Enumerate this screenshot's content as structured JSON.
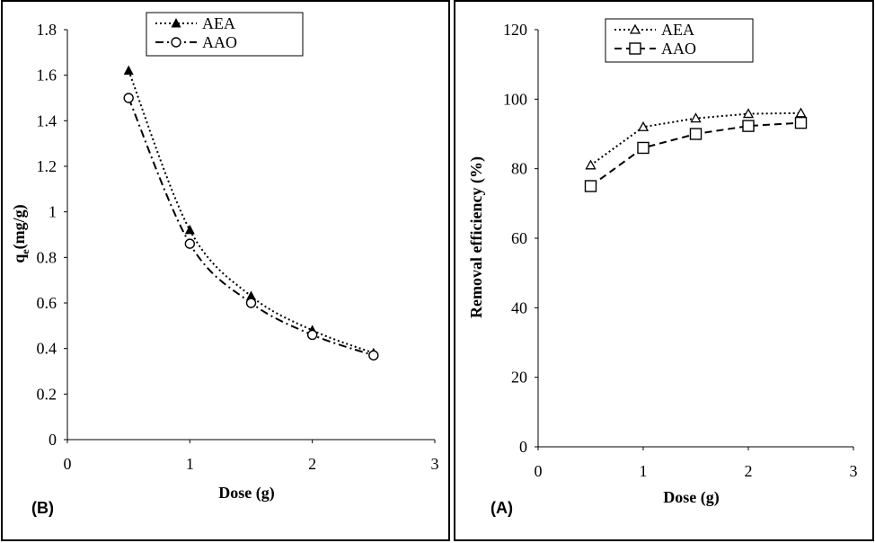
{
  "chart_data": [
    {
      "panel_label": "(B)",
      "type": "line",
      "xlabel": "Dose (g)",
      "ylabel": "qe(mg/g)",
      "ylabel_main": "q",
      "ylabel_sub": "e",
      "ylabel_rest": "(mg/g)",
      "xlim": [
        0,
        3
      ],
      "ylim": [
        0,
        1.8
      ],
      "xticks": [
        "0",
        "1",
        "2",
        "3"
      ],
      "yticks": [
        "0",
        "0.2",
        "0.4",
        "0.6",
        "0.8",
        "1",
        "1.2",
        "1.4",
        "1.6",
        "1.8"
      ],
      "legend_position": "top",
      "series": [
        {
          "name": "AEA",
          "marker": "filled-triangle",
          "line": "dotted",
          "x": [
            0.5,
            1.0,
            1.5,
            2.0,
            2.5
          ],
          "y": [
            1.62,
            0.92,
            0.63,
            0.48,
            0.38
          ]
        },
        {
          "name": "AAO",
          "marker": "open-circle",
          "line": "dash-dot",
          "x": [
            0.5,
            1.0,
            1.5,
            2.0,
            2.5
          ],
          "y": [
            1.5,
            0.86,
            0.6,
            0.46,
            0.37
          ]
        }
      ]
    },
    {
      "panel_label": "(A)",
      "type": "line",
      "xlabel": "Dose (g)",
      "ylabel": "Removal efficiency  (%)",
      "xlim": [
        0,
        3
      ],
      "ylim": [
        0,
        120
      ],
      "xticks": [
        "0",
        "1",
        "2",
        "3"
      ],
      "yticks": [
        "0",
        "20",
        "40",
        "60",
        "80",
        "100",
        "120"
      ],
      "legend_position": "top",
      "series": [
        {
          "name": "AEA",
          "marker": "open-triangle",
          "line": "dotted",
          "x": [
            0.5,
            1.0,
            1.5,
            2.0,
            2.5
          ],
          "y": [
            81,
            92,
            94.5,
            95.8,
            96
          ]
        },
        {
          "name": "AAO",
          "marker": "open-square",
          "line": "dashed",
          "x": [
            0.5,
            1.0,
            1.5,
            2.0,
            2.5
          ],
          "y": [
            75,
            86,
            90,
            92.3,
            93.2
          ]
        }
      ]
    }
  ]
}
